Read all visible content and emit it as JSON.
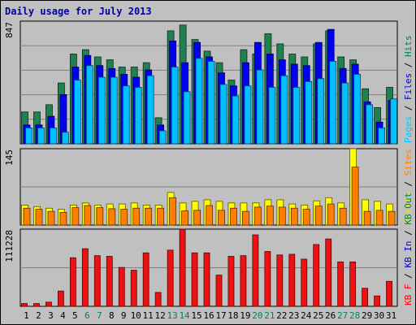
{
  "chart_data": {
    "type": "bar",
    "title": "Daily usage for July 2013",
    "days": [
      "1",
      "2",
      "3",
      "4",
      "5",
      "6",
      "7",
      "8",
      "9",
      "10",
      "11",
      "12",
      "13",
      "14",
      "15",
      "16",
      "17",
      "18",
      "19",
      "20",
      "21",
      "22",
      "23",
      "24",
      "25",
      "26",
      "27",
      "28",
      "29",
      "30",
      "31"
    ],
    "weekend_days": [
      "6",
      "7",
      "13",
      "14",
      "20",
      "21",
      "27",
      "28"
    ],
    "panels": [
      {
        "id": "top",
        "max_label": "847",
        "ymax": 847,
        "axis_labels": [
          {
            "text": "Pages",
            "color": "#00ccff"
          },
          {
            "text": "Files",
            "color": "#0000cc"
          },
          {
            "text": "Hits",
            "color": "#00805c"
          }
        ],
        "series": [
          {
            "name": "Hits",
            "color": "#208050",
            "values": [
              220,
              220,
              270,
              420,
              620,
              650,
              600,
              580,
              530,
              530,
              560,
              180,
              780,
              820,
              720,
              640,
              560,
              440,
              650,
              620,
              760,
              690,
              620,
              600,
              690,
              780,
              600,
              580,
              380,
              250,
              390
            ]
          },
          {
            "name": "Files",
            "color": "#0000ee",
            "values": [
              130,
              130,
              190,
              340,
              530,
              610,
              540,
              520,
              480,
              460,
              510,
              130,
              710,
              560,
              700,
              600,
              490,
              400,
              560,
              700,
              620,
              580,
              550,
              540,
              700,
              790,
              520,
              550,
              290,
              150,
              300
            ]
          },
          {
            "name": "Pages",
            "color": "#00c0ff",
            "values": [
              110,
              110,
              110,
              80,
              440,
              540,
              460,
              460,
              400,
              390,
              470,
              90,
              530,
              360,
              590,
              570,
              410,
              330,
              400,
              510,
              390,
              470,
              390,
              430,
              450,
              570,
              420,
              480,
              270,
              110,
              310
            ]
          }
        ]
      },
      {
        "id": "mid",
        "max_label": "145",
        "ymax": 145,
        "axis_labels": [
          {
            "text": "Visits",
            "color": "#e8e800"
          },
          {
            "text": "Sites",
            "color": "#ff8000"
          }
        ],
        "series": [
          {
            "name": "Visits",
            "color": "#ffff00",
            "values": [
              38,
              35,
              32,
              30,
              38,
              42,
              38,
              40,
              40,
              42,
              38,
              38,
              62,
              42,
              45,
              48,
              45,
              42,
              42,
              42,
              48,
              48,
              40,
              38,
              46,
              52,
              42,
              145,
              48,
              45,
              40
            ]
          },
          {
            "name": "Sites",
            "color": "#ff8000",
            "values": [
              32,
              30,
              26,
              24,
              33,
              37,
              33,
              31,
              30,
              32,
              32,
              32,
              52,
              27,
              28,
              37,
              28,
              32,
              26,
              34,
              36,
              34,
              32,
              30,
              36,
              40,
              32,
              110,
              26,
              28,
              26
            ]
          }
        ]
      },
      {
        "id": "bot",
        "max_label": "111228",
        "ymax": 111228,
        "axis_labels": [
          {
            "text": "KB F",
            "color": "#ff0000"
          },
          {
            "text": "KB In",
            "color": "#0000cc"
          },
          {
            "text": "KB Out",
            "color": "#00805c"
          }
        ],
        "series": [
          {
            "name": "KB F",
            "color": "#ee1111",
            "values": [
              4000,
              4000,
              6000,
              22000,
              70000,
              83000,
              73000,
              72000,
              56000,
              52000,
              77000,
              20000,
              81000,
              111228,
              77000,
              77000,
              45000,
              72000,
              73000,
              103000,
              79000,
              74000,
              75000,
              68000,
              89000,
              97000,
              64000,
              64000,
              26000,
              15000,
              36000
            ]
          }
        ]
      }
    ]
  }
}
